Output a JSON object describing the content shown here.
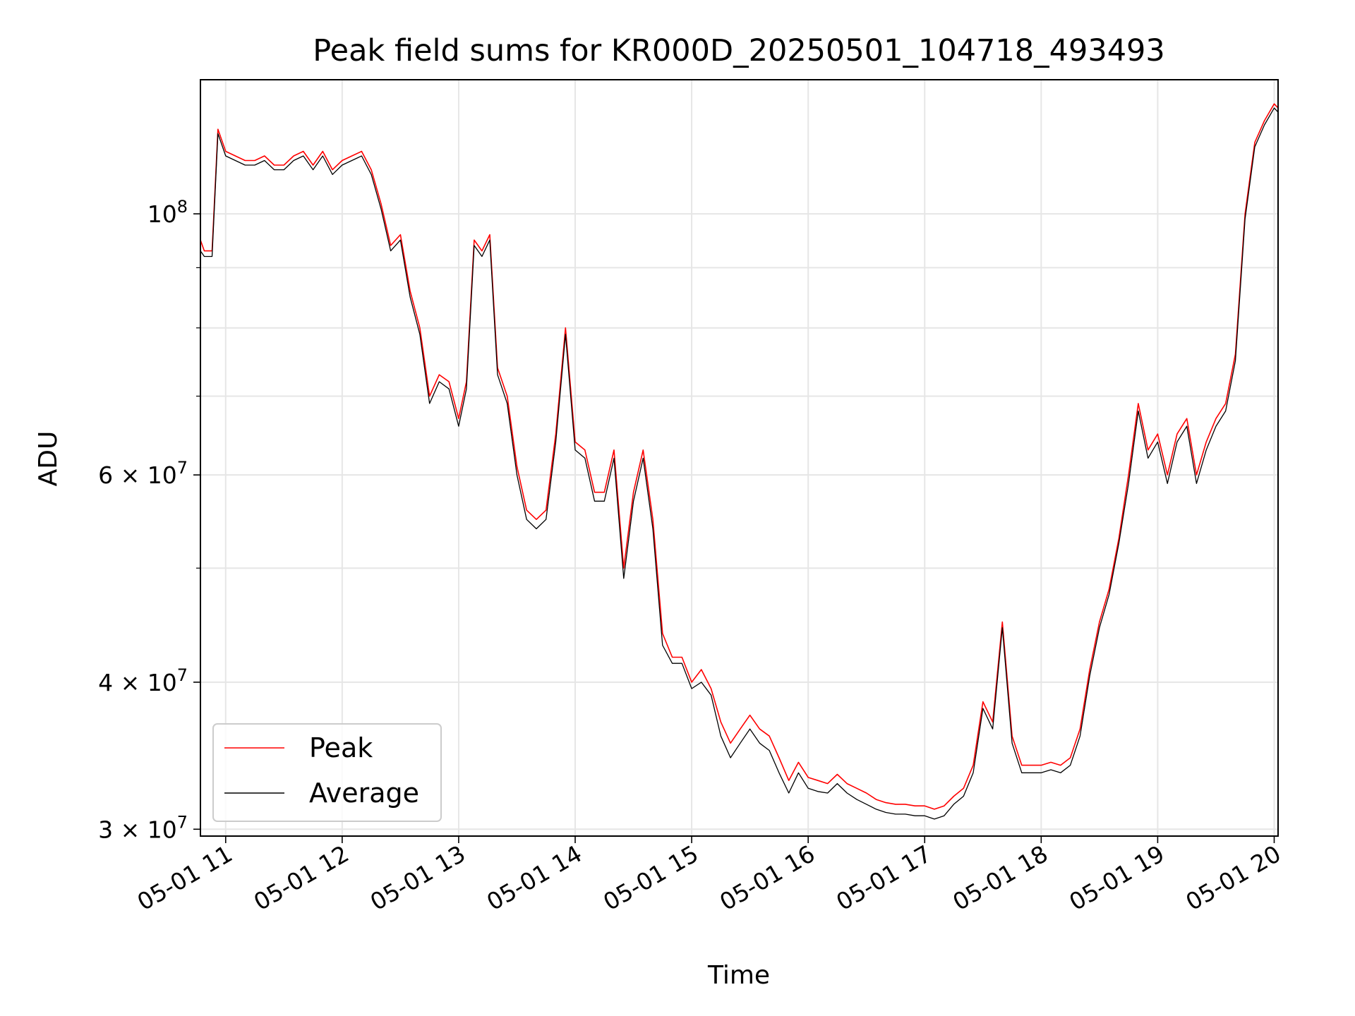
{
  "chart_data": {
    "type": "line",
    "title": "Peak field sums for KR000D_20250501_104718_493493",
    "xlabel": "Time",
    "ylabel": "ADU",
    "x_range": [
      "05-01 10:47",
      "05-01 20:02"
    ],
    "y_scale": "log",
    "ylim": [
      29600000,
      130000000
    ],
    "grid": true,
    "legend_location": "lower left",
    "x_ticks": [
      "05-01 11",
      "05-01 12",
      "05-01 13",
      "05-01 14",
      "05-01 15",
      "05-01 16",
      "05-01 17",
      "05-01 18",
      "05-01 19",
      "05-01 20"
    ],
    "y_ticks": [
      {
        "value": 30000000,
        "mantissa": "3",
        "exponent": "7"
      },
      {
        "value": 40000000,
        "mantissa": "4",
        "exponent": "7"
      },
      {
        "value": 60000000,
        "mantissa": "6",
        "exponent": "7"
      },
      {
        "value": 100000000,
        "mantissa": "10",
        "exponent": "8"
      }
    ],
    "x": [
      "05-01 10:47",
      "05-01 10:49",
      "05-01 10:53",
      "05-01 10:56",
      "05-01 11:00",
      "05-01 11:05",
      "05-01 11:10",
      "05-01 11:15",
      "05-01 11:20",
      "05-01 11:25",
      "05-01 11:30",
      "05-01 11:35",
      "05-01 11:40",
      "05-01 11:45",
      "05-01 11:50",
      "05-01 11:55",
      "05-01 12:00",
      "05-01 12:05",
      "05-01 12:10",
      "05-01 12:15",
      "05-01 12:20",
      "05-01 12:25",
      "05-01 12:30",
      "05-01 12:35",
      "05-01 12:40",
      "05-01 12:45",
      "05-01 12:50",
      "05-01 12:55",
      "05-01 13:00",
      "05-01 13:04",
      "05-01 13:08",
      "05-01 13:12",
      "05-01 13:16",
      "05-01 13:20",
      "05-01 13:25",
      "05-01 13:30",
      "05-01 13:35",
      "05-01 13:40",
      "05-01 13:45",
      "05-01 13:50",
      "05-01 13:55",
      "05-01 14:00",
      "05-01 14:05",
      "05-01 14:10",
      "05-01 14:15",
      "05-01 14:20",
      "05-01 14:25",
      "05-01 14:30",
      "05-01 14:35",
      "05-01 14:40",
      "05-01 14:45",
      "05-01 14:50",
      "05-01 14:55",
      "05-01 15:00",
      "05-01 15:05",
      "05-01 15:10",
      "05-01 15:15",
      "05-01 15:20",
      "05-01 15:25",
      "05-01 15:30",
      "05-01 15:35",
      "05-01 15:40",
      "05-01 15:45",
      "05-01 15:50",
      "05-01 15:55",
      "05-01 16:00",
      "05-01 16:05",
      "05-01 16:10",
      "05-01 16:15",
      "05-01 16:20",
      "05-01 16:25",
      "05-01 16:30",
      "05-01 16:35",
      "05-01 16:40",
      "05-01 16:45",
      "05-01 16:50",
      "05-01 16:55",
      "05-01 17:00",
      "05-01 17:05",
      "05-01 17:10",
      "05-01 17:15",
      "05-01 17:20",
      "05-01 17:25",
      "05-01 17:30",
      "05-01 17:35",
      "05-01 17:40",
      "05-01 17:45",
      "05-01 17:50",
      "05-01 17:55",
      "05-01 18:00",
      "05-01 18:05",
      "05-01 18:10",
      "05-01 18:15",
      "05-01 18:20",
      "05-01 18:25",
      "05-01 18:30",
      "05-01 18:35",
      "05-01 18:40",
      "05-01 18:45",
      "05-01 18:50",
      "05-01 18:55",
      "05-01 19:00",
      "05-01 19:05",
      "05-01 19:10",
      "05-01 19:15",
      "05-01 19:20",
      "05-01 19:25",
      "05-01 19:30",
      "05-01 19:35",
      "05-01 19:40",
      "05-01 19:45",
      "05-01 19:50",
      "05-01 19:55",
      "05-01 20:00",
      "05-01 20:02"
    ],
    "series": [
      {
        "name": "Peak",
        "color": "#ff0000",
        "values": [
          95000000,
          93000000,
          93000000,
          118000000,
          113000000,
          112000000,
          111000000,
          111000000,
          112000000,
          110000000,
          110000000,
          112000000,
          113000000,
          110000000,
          113000000,
          109000000,
          111000000,
          112000000,
          113000000,
          109000000,
          102000000,
          94000000,
          96000000,
          86000000,
          80000000,
          70000000,
          73000000,
          72000000,
          67000000,
          72000000,
          95000000,
          93000000,
          96000000,
          74000000,
          70000000,
          61000000,
          56000000,
          55000000,
          56000000,
          65000000,
          80000000,
          64000000,
          63000000,
          58000000,
          58000000,
          63000000,
          50000000,
          58000000,
          63000000,
          55000000,
          44000000,
          42000000,
          42000000,
          40000000,
          41000000,
          39500000,
          37000000,
          35500000,
          36500000,
          37500000,
          36500000,
          36000000,
          34500000,
          33000000,
          34200000,
          33200000,
          33000000,
          32800000,
          33400000,
          32800000,
          32500000,
          32200000,
          31800000,
          31600000,
          31500000,
          31500000,
          31400000,
          31400000,
          31200000,
          31400000,
          32000000,
          32500000,
          34000000,
          38500000,
          37000000,
          45000000,
          36000000,
          34000000,
          34000000,
          34000000,
          34200000,
          34000000,
          34500000,
          36500000,
          41000000,
          45000000,
          48000000,
          53000000,
          60000000,
          69000000,
          63000000,
          65000000,
          60000000,
          65000000,
          67000000,
          60000000,
          64000000,
          67000000,
          69000000,
          76000000,
          100000000,
          115000000,
          120000000,
          124000000,
          123000000
        ]
      },
      {
        "name": "Average",
        "color": "#000000",
        "values": [
          93000000,
          92000000,
          92000000,
          117000000,
          112000000,
          111000000,
          110000000,
          110000000,
          111000000,
          109000000,
          109000000,
          111000000,
          112000000,
          109000000,
          112000000,
          108000000,
          110000000,
          111000000,
          112000000,
          108000000,
          101000000,
          93000000,
          95000000,
          85000000,
          79000000,
          69000000,
          72000000,
          71000000,
          66000000,
          71000000,
          94000000,
          92000000,
          95000000,
          73000000,
          69000000,
          60000000,
          55000000,
          54000000,
          55000000,
          64000000,
          79000000,
          63000000,
          62000000,
          57000000,
          57000000,
          62000000,
          49000000,
          57000000,
          62000000,
          54000000,
          43000000,
          41500000,
          41500000,
          39500000,
          40000000,
          39000000,
          36000000,
          34500000,
          35500000,
          36500000,
          35500000,
          35000000,
          33500000,
          32200000,
          33500000,
          32500000,
          32300000,
          32200000,
          32800000,
          32200000,
          31800000,
          31500000,
          31200000,
          31000000,
          30900000,
          30900000,
          30800000,
          30800000,
          30600000,
          30800000,
          31500000,
          32000000,
          33500000,
          38000000,
          36500000,
          44500000,
          35500000,
          33500000,
          33500000,
          33500000,
          33700000,
          33500000,
          34000000,
          36000000,
          40500000,
          44500000,
          47500000,
          52500000,
          59000000,
          68000000,
          62000000,
          64000000,
          59000000,
          64000000,
          66000000,
          59000000,
          63000000,
          66000000,
          68000000,
          75000000,
          99000000,
          114000000,
          119000000,
          123000000,
          122000000
        ]
      }
    ]
  }
}
